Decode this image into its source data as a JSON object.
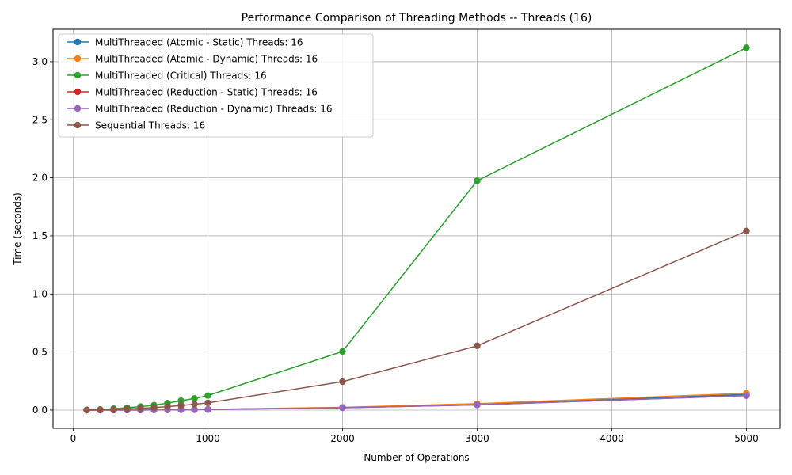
{
  "chart_data": {
    "type": "line",
    "title": "Performance Comparison of Threading Methods -- Threads (16)",
    "xlabel": "Number of Operations",
    "ylabel": "Time (seconds)",
    "xlim": [
      -150,
      5250
    ],
    "ylim": [
      -0.157,
      3.279
    ],
    "x_ticks": [
      0,
      1000,
      2000,
      3000,
      4000,
      5000
    ],
    "y_ticks": [
      0.0,
      0.5,
      1.0,
      1.5,
      2.0,
      2.5,
      3.0
    ],
    "grid": true,
    "legend_position": "upper-left",
    "x": [
      100,
      200,
      300,
      400,
      500,
      600,
      700,
      800,
      900,
      1000,
      2000,
      3000,
      5000
    ],
    "series": [
      {
        "name": "MultiThreaded (Atomic - Static) Threads: 16",
        "color": "#1f77b4",
        "values": [
          0.0001,
          0.0003,
          0.0006,
          0.0009,
          0.0012,
          0.002,
          0.003,
          0.0035,
          0.0045,
          0.006,
          0.022,
          0.05,
          0.135
        ]
      },
      {
        "name": "MultiThreaded (Atomic - Dynamic) Threads: 16",
        "color": "#ff7f0e",
        "values": [
          0.0001,
          0.0003,
          0.0006,
          0.0009,
          0.0012,
          0.002,
          0.003,
          0.0035,
          0.0045,
          0.006,
          0.024,
          0.055,
          0.145
        ]
      },
      {
        "name": "MultiThreaded (Critical) Threads: 16",
        "color": "#2ca02c",
        "values": [
          0.0006,
          0.005,
          0.012,
          0.02,
          0.03,
          0.042,
          0.06,
          0.08,
          0.1,
          0.125,
          0.505,
          1.975,
          3.12
        ]
      },
      {
        "name": "MultiThreaded (Reduction - Static) Threads: 16",
        "color": "#d62728",
        "values": [
          0.0001,
          0.0003,
          0.0005,
          0.0008,
          0.001,
          0.0018,
          0.0025,
          0.003,
          0.004,
          0.005,
          0.02,
          0.045,
          0.125
        ]
      },
      {
        "name": "MultiThreaded (Reduction - Dynamic) Threads: 16",
        "color": "#9467bd",
        "values": [
          0.0001,
          0.0003,
          0.0005,
          0.0008,
          0.001,
          0.0018,
          0.0025,
          0.003,
          0.004,
          0.005,
          0.02,
          0.045,
          0.125
        ]
      },
      {
        "name": "Sequential Threads: 16",
        "color": "#8c564b",
        "values": [
          0.0003,
          0.002,
          0.005,
          0.01,
          0.015,
          0.022,
          0.03,
          0.04,
          0.05,
          0.062,
          0.245,
          0.553,
          1.542
        ]
      }
    ]
  }
}
